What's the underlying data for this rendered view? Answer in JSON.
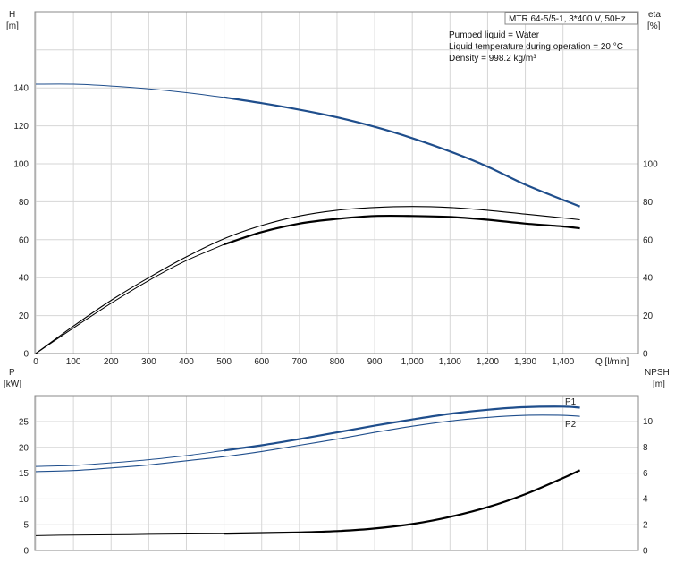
{
  "header": {
    "model_box": "MTR 64-5/5-1, 3*400 V, 50Hz",
    "info_lines": [
      "Pumped liquid = Water",
      "Liquid temperature during operation = 20 °C",
      "Density = 998.2 kg/m³"
    ]
  },
  "chart_data": [
    {
      "type": "line",
      "x_axis": {
        "label": "Q [l/min]",
        "range": [
          0,
          1480
        ],
        "ticks": [
          0,
          100,
          200,
          300,
          400,
          500,
          600,
          700,
          800,
          900,
          1000,
          1100,
          1200,
          1300,
          1400
        ],
        "tick_labels": [
          "0",
          "100",
          "200",
          "300",
          "400",
          "500",
          "600",
          "700",
          "800",
          "900",
          "1,000",
          "1,100",
          "1,200",
          "1,300",
          "1,400"
        ]
      },
      "y_left": {
        "label_line1": "H",
        "label_line2": "[m]",
        "range": [
          0,
          160
        ],
        "ticks": [
          0,
          20,
          40,
          60,
          80,
          100,
          120,
          140
        ]
      },
      "y_right": {
        "label_line1": "eta",
        "label_line2": "[%]",
        "range": [
          0,
          160
        ],
        "ticks": [
          0,
          20,
          40,
          60,
          80,
          100
        ]
      },
      "grid": true,
      "series": [
        {
          "id": "head",
          "color": "#1f4e8c",
          "points": [
            [
              0,
              142
            ],
            [
              100,
              142
            ],
            [
              200,
              141
            ],
            [
              300,
              139.5
            ],
            [
              400,
              137.5
            ],
            [
              500,
              135
            ],
            [
              600,
              132
            ],
            [
              700,
              128.5
            ],
            [
              800,
              124.5
            ],
            [
              900,
              119.5
            ],
            [
              1000,
              113.5
            ],
            [
              1100,
              106.5
            ],
            [
              1200,
              98.5
            ],
            [
              1300,
              89
            ],
            [
              1400,
              81
            ],
            [
              1445,
              77.5
            ]
          ]
        },
        {
          "id": "efficiency-upper",
          "color": "#000000",
          "points": [
            [
              0,
              0
            ],
            [
              100,
              14.5
            ],
            [
              200,
              28
            ],
            [
              300,
              40
            ],
            [
              400,
              51
            ],
            [
              500,
              60.5
            ],
            [
              600,
              67.5
            ],
            [
              700,
              72.5
            ],
            [
              800,
              75.5
            ],
            [
              900,
              77
            ],
            [
              1000,
              77.5
            ],
            [
              1100,
              77
            ],
            [
              1200,
              75.5
            ],
            [
              1300,
              73.5
            ],
            [
              1400,
              71.5
            ],
            [
              1445,
              70.5
            ]
          ]
        },
        {
          "id": "efficiency-lower",
          "color": "#000000",
          "points": [
            [
              0,
              0
            ],
            [
              100,
              13.5
            ],
            [
              200,
              26.5
            ],
            [
              300,
              38.5
            ],
            [
              400,
              49
            ],
            [
              500,
              57.5
            ],
            [
              600,
              64
            ],
            [
              700,
              68.5
            ],
            [
              800,
              71
            ],
            [
              900,
              72.5
            ],
            [
              1000,
              72.5
            ],
            [
              1100,
              72
            ],
            [
              1200,
              70.5
            ],
            [
              1300,
              68.5
            ],
            [
              1400,
              67
            ],
            [
              1445,
              66
            ]
          ]
        }
      ]
    },
    {
      "type": "line",
      "x_axis": {
        "range": [
          0,
          1480
        ]
      },
      "y_left": {
        "label_line1": "P",
        "label_line2": "[kW]",
        "range": [
          0,
          29
        ],
        "ticks": [
          0,
          5,
          10,
          15,
          20,
          25
        ]
      },
      "y_right": {
        "label_line1": "NPSH",
        "label_line2": "[m]",
        "range": [
          0,
          11.6
        ],
        "ticks": [
          0,
          2,
          4,
          6,
          8,
          10
        ]
      },
      "grid": true,
      "series": [
        {
          "name": "P1",
          "color": "#1f4e8c",
          "axis": "left",
          "points": [
            [
              0,
              16.3
            ],
            [
              100,
              16.5
            ],
            [
              200,
              17
            ],
            [
              300,
              17.6
            ],
            [
              400,
              18.4
            ],
            [
              500,
              19.4
            ],
            [
              600,
              20.4
            ],
            [
              700,
              21.6
            ],
            [
              800,
              22.9
            ],
            [
              900,
              24.2
            ],
            [
              1000,
              25.4
            ],
            [
              1100,
              26.5
            ],
            [
              1200,
              27.3
            ],
            [
              1300,
              27.8
            ],
            [
              1400,
              27.9
            ],
            [
              1445,
              27.7
            ]
          ]
        },
        {
          "name": "P2",
          "color": "#1f4e8c",
          "axis": "left",
          "points": [
            [
              0,
              15.3
            ],
            [
              100,
              15.5
            ],
            [
              200,
              16
            ],
            [
              300,
              16.6
            ],
            [
              400,
              17.4
            ],
            [
              500,
              18.2
            ],
            [
              600,
              19.2
            ],
            [
              700,
              20.4
            ],
            [
              800,
              21.6
            ],
            [
              900,
              22.9
            ],
            [
              1000,
              24.1
            ],
            [
              1100,
              25.1
            ],
            [
              1200,
              25.8
            ],
            [
              1300,
              26.2
            ],
            [
              1400,
              26.2
            ],
            [
              1445,
              26
            ]
          ]
        },
        {
          "id": "npsh",
          "color": "#000000",
          "axis": "right",
          "points": [
            [
              0,
              1.15
            ],
            [
              100,
              1.2
            ],
            [
              200,
              1.22
            ],
            [
              300,
              1.25
            ],
            [
              400,
              1.28
            ],
            [
              500,
              1.3
            ],
            [
              600,
              1.35
            ],
            [
              700,
              1.4
            ],
            [
              800,
              1.5
            ],
            [
              900,
              1.7
            ],
            [
              1000,
              2.05
            ],
            [
              1100,
              2.6
            ],
            [
              1200,
              3.35
            ],
            [
              1300,
              4.35
            ],
            [
              1400,
              5.6
            ],
            [
              1445,
              6.2
            ]
          ]
        }
      ]
    }
  ]
}
